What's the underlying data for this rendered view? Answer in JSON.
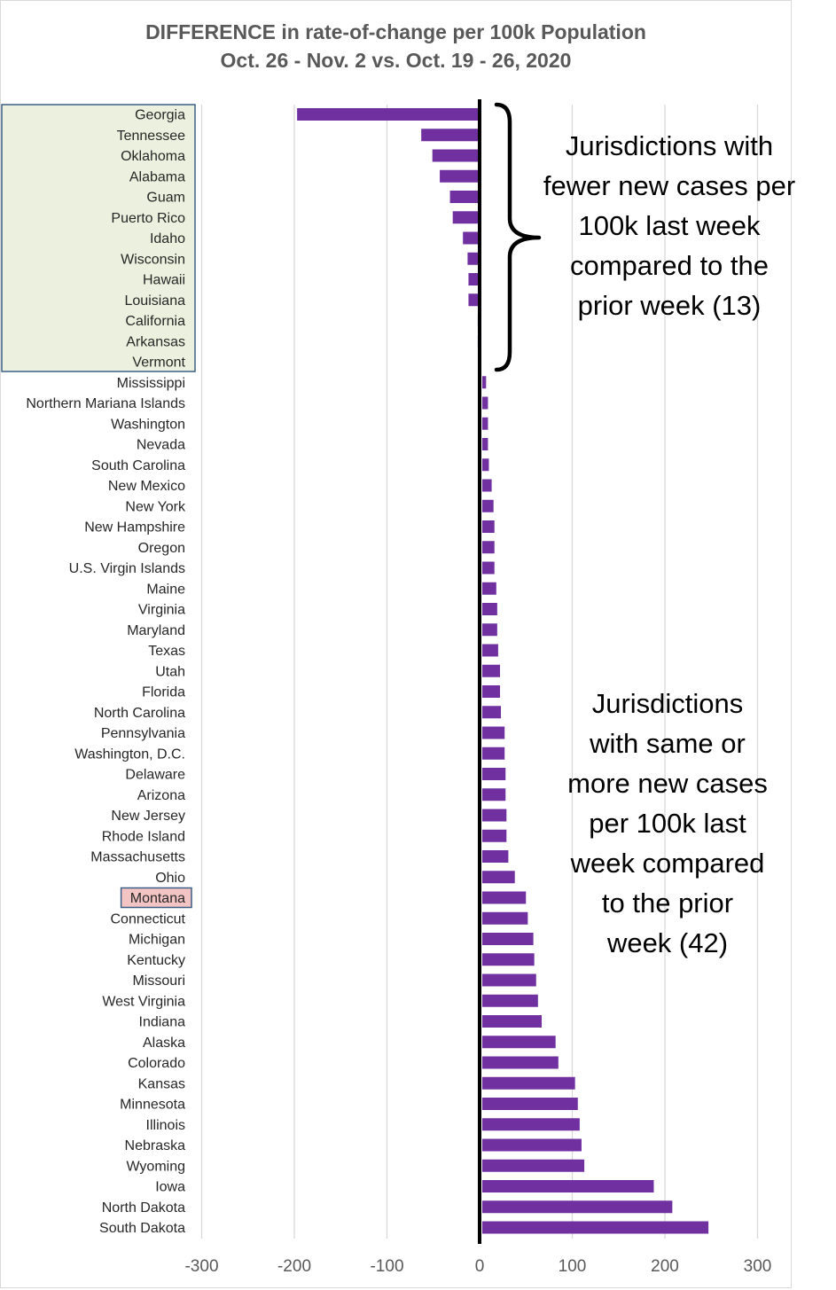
{
  "chart_data": {
    "type": "bar",
    "orientation": "horizontal",
    "title": "DIFFERENCE in rate-of-change per 100k Population",
    "subtitle": "Oct. 26 - Nov. 2 vs. Oct. 19 - 26, 2020",
    "xlim": [
      -300,
      300
    ],
    "xticks": [
      -300,
      -200,
      -100,
      0,
      100,
      200,
      300
    ],
    "xtick_labels": [
      "-300",
      "-200",
      "-100",
      "0",
      "100",
      "200",
      "300"
    ],
    "grid": true,
    "bar_color": "#7030a0",
    "categories": [
      "Georgia",
      "Tennessee",
      "Oklahoma",
      "Alabama",
      "Guam",
      "Puerto Rico",
      "Idaho",
      "Wisconsin",
      "Hawaii",
      "Louisiana",
      "California",
      "Arkansas",
      "Vermont",
      "Mississippi",
      "Northern Mariana Islands",
      "Washington",
      "Nevada",
      "South Carolina",
      "New Mexico",
      "New York",
      "New Hampshire",
      "Oregon",
      "U.S. Virgin Islands",
      "Maine",
      "Virginia",
      "Maryland",
      "Texas",
      "Utah",
      "Florida",
      "North Carolina",
      "Pennsylvania",
      "Washington, D.C.",
      "Delaware",
      "Arizona",
      "New Jersey",
      "Rhode Island",
      "Massachusetts",
      "Ohio",
      "Montana",
      "Connecticut",
      "Michigan",
      "Kentucky",
      "Missouri",
      "West Virginia",
      "Indiana",
      "Alaska",
      "Colorado",
      "Kansas",
      "Minnesota",
      "Illinois",
      "Nebraska",
      "Wyoming",
      "Iowa",
      "North Dakota",
      "South Dakota"
    ],
    "values": [
      -197,
      -63,
      -51,
      -43,
      -32,
      -29,
      -18,
      -13,
      -12,
      -12,
      -2,
      -2,
      -1,
      7,
      9,
      9,
      9,
      10,
      13,
      15,
      16,
      16,
      16,
      18,
      19,
      19,
      20,
      22,
      22,
      23,
      27,
      27,
      28,
      28,
      29,
      29,
      31,
      38,
      50,
      52,
      58,
      59,
      61,
      63,
      67,
      82,
      85,
      103,
      106,
      108,
      110,
      113,
      188,
      208,
      247
    ],
    "highlight_groups": [
      {
        "categories": [
          "Georgia",
          "Tennessee",
          "Oklahoma",
          "Alabama",
          "Guam",
          "Puerto Rico",
          "Idaho",
          "Wisconsin",
          "Hawaii",
          "Louisiana",
          "California",
          "Arkansas",
          "Vermont"
        ],
        "color": "#ebf1de"
      },
      {
        "categories": [
          "Montana"
        ],
        "color": "#f2c4c4"
      }
    ],
    "annotations": [
      {
        "lines": [
          "Jurisdictions with",
          "fewer new cases per",
          "100k last week",
          "compared to the",
          "prior week (13)"
        ]
      },
      {
        "lines": [
          "Jurisdictions",
          "with same or",
          "more new cases",
          "per 100k last",
          "week compared",
          "to the prior",
          "week (42)"
        ]
      }
    ]
  }
}
